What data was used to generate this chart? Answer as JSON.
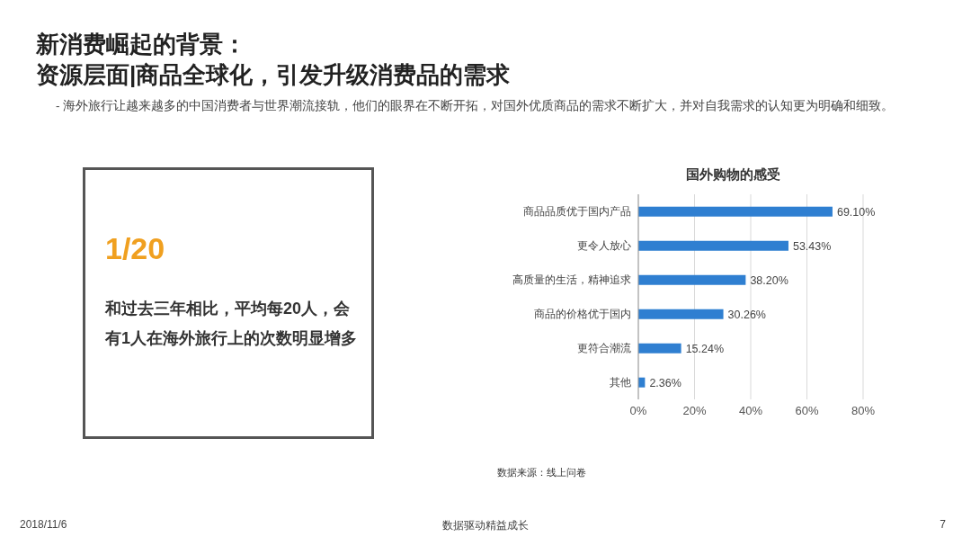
{
  "chart_data": [
    {
      "type": "other",
      "title": "1/20",
      "annotations": [
        "和过去三年相比，平均每20人，会有1人在海外旅行上的次数明显增多"
      ]
    },
    {
      "type": "bar",
      "orientation": "horizontal",
      "title": "国外购物的感受",
      "categories": [
        "商品品质优于国内产品",
        "更令人放心",
        "高质量的生活，精神追求",
        "商品的价格优于国内",
        "更符合潮流",
        "其他"
      ],
      "values": [
        69.1,
        53.43,
        38.2,
        30.26,
        15.24,
        2.36
      ],
      "value_labels": [
        "69.10%",
        "53.43%",
        "38.20%",
        "30.26%",
        "15.24%",
        "2.36%"
      ],
      "color": "#2f7fd1",
      "xlim": [
        0,
        80
      ],
      "xticks": [
        {
          "value": 0,
          "label": "0%"
        },
        {
          "value": 20,
          "label": "20%"
        },
        {
          "value": 40,
          "label": "40%"
        },
        {
          "value": 60,
          "label": "60%"
        },
        {
          "value": 80,
          "label": "80%"
        }
      ],
      "grid": "x",
      "annotations": [
        "新消费崛起的背景：",
        "资源层面|商品全球化，引发升级消费品的需求",
        "-  海外旅行让越来越多的中国消费者与世界潮流接轨，他们的眼界在不断开拓，对国外优质商品的需求不断扩大，并对自我需求的认知更为明确和细致。",
        "数据来源：线上问卷",
        "2018/11/6",
        "数据驱动精益成长",
        "7"
      ]
    }
  ]
}
